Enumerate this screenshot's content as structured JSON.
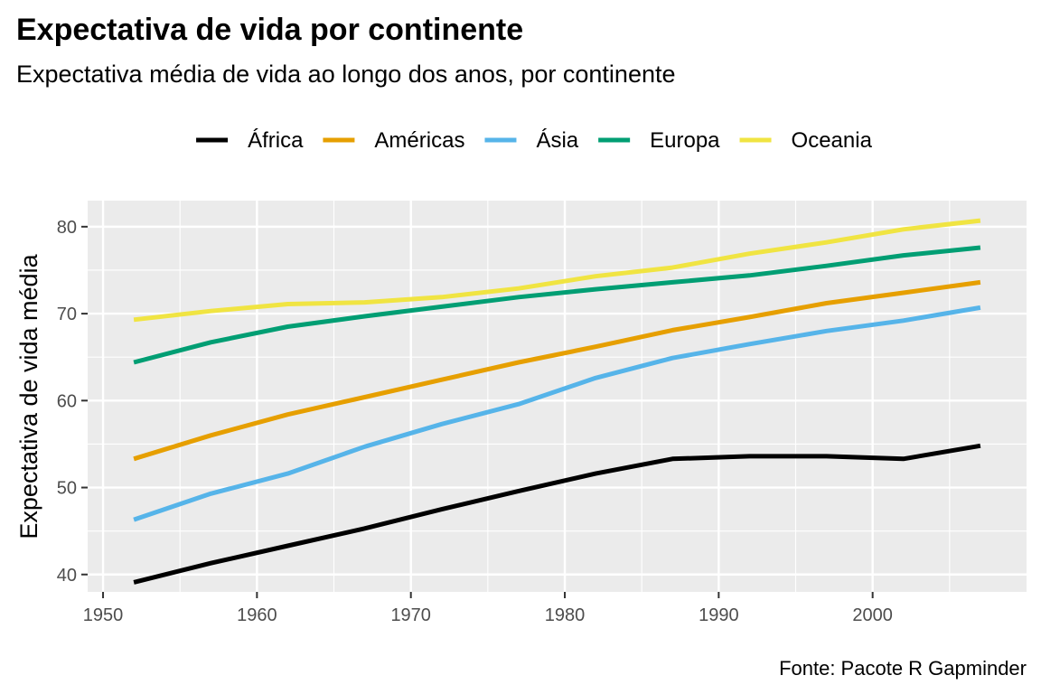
{
  "chart_data": {
    "type": "line",
    "title": "Expectativa de vida por continente",
    "subtitle": "Expectativa média de vida ao longo dos anos, por continente",
    "xlabel": "",
    "ylabel": "Expectativa de vida média",
    "caption": "Fonte: Pacote R Gapminder",
    "xlim": [
      1949,
      2010
    ],
    "ylim": [
      38,
      83
    ],
    "x_ticks": [
      1950,
      1960,
      1970,
      1980,
      1990,
      2000
    ],
    "y_ticks": [
      40,
      50,
      60,
      70,
      80
    ],
    "grid": true,
    "legend_position": "top",
    "x": [
      1952,
      1957,
      1962,
      1967,
      1972,
      1977,
      1982,
      1987,
      1992,
      1997,
      2002,
      2007
    ],
    "series": [
      {
        "name": "África",
        "color": "#000000",
        "values": [
          39.1,
          41.3,
          43.3,
          45.3,
          47.5,
          49.6,
          51.6,
          53.3,
          53.6,
          53.6,
          53.3,
          54.8
        ]
      },
      {
        "name": "Américas",
        "color": "#E69F00",
        "values": [
          53.3,
          56.0,
          58.4,
          60.4,
          62.4,
          64.4,
          66.2,
          68.1,
          69.6,
          71.2,
          72.4,
          73.6
        ]
      },
      {
        "name": "Ásia",
        "color": "#56B4E9",
        "values": [
          46.3,
          49.3,
          51.6,
          54.7,
          57.3,
          59.6,
          62.6,
          64.9,
          66.5,
          68.0,
          69.2,
          70.7
        ]
      },
      {
        "name": "Europa",
        "color": "#009E73",
        "values": [
          64.4,
          66.7,
          68.5,
          69.7,
          70.8,
          71.9,
          72.8,
          73.6,
          74.4,
          75.5,
          76.7,
          77.6
        ]
      },
      {
        "name": "Oceania",
        "color": "#F0E442",
        "values": [
          69.3,
          70.3,
          71.1,
          71.3,
          71.9,
          72.9,
          74.3,
          75.3,
          76.9,
          78.2,
          79.7,
          80.7
        ]
      }
    ]
  }
}
